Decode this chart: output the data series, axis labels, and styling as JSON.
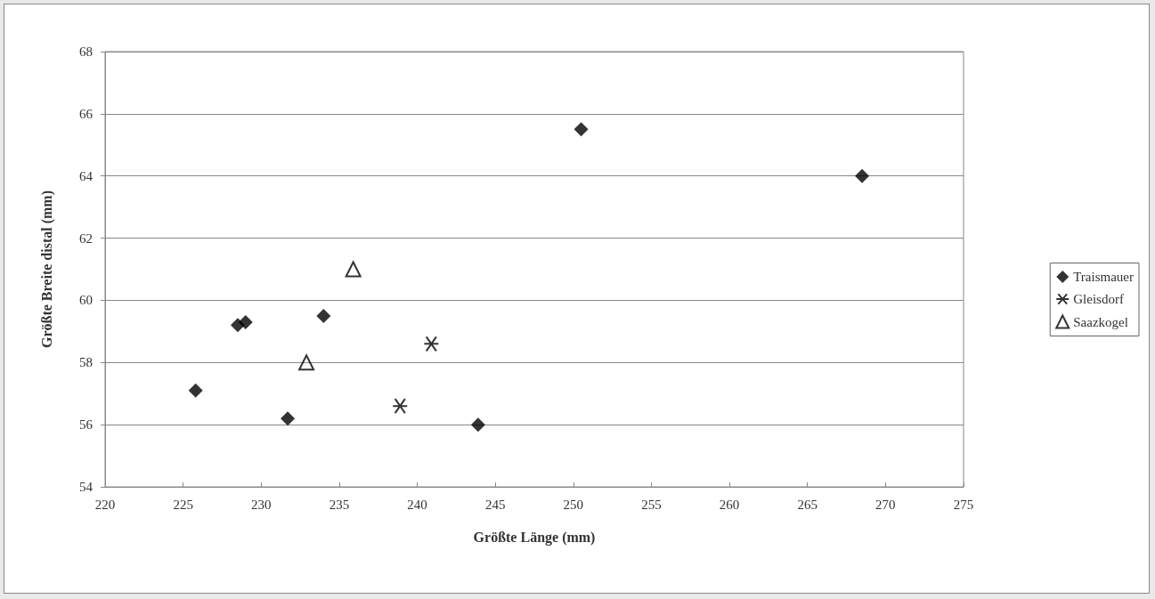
{
  "chart_data": {
    "type": "scatter",
    "xlabel": "Größte Länge (mm)",
    "ylabel": "Größte Breite distal (mm)",
    "xlim": [
      220,
      275
    ],
    "xticks": [
      220,
      225,
      230,
      235,
      240,
      245,
      250,
      255,
      260,
      265,
      270,
      275
    ],
    "ylim": [
      54,
      68
    ],
    "yticks": [
      54,
      56,
      58,
      60,
      62,
      64,
      66,
      68
    ],
    "grid": "y",
    "legend": "right",
    "series": [
      {
        "name": "Traismauer",
        "color": "#000000",
        "marker": "diamond",
        "x": [
          225.8,
          228.5,
          229.0,
          234.0,
          231.7,
          243.9,
          250.5,
          268.5
        ],
        "values": [
          57.1,
          59.2,
          59.3,
          59.5,
          56.2,
          56.0,
          65.5,
          64.0
        ]
      },
      {
        "name": "Gleisdorf",
        "color": "#000000",
        "marker": "cross",
        "x": [
          240.9,
          238.9
        ],
        "values": [
          58.6,
          56.6
        ]
      },
      {
        "name": "Saazkogel",
        "color": "#000000",
        "marker": "triangle",
        "x": [
          232.9,
          235.9
        ],
        "values": [
          58.0,
          61.0
        ]
      }
    ]
  }
}
